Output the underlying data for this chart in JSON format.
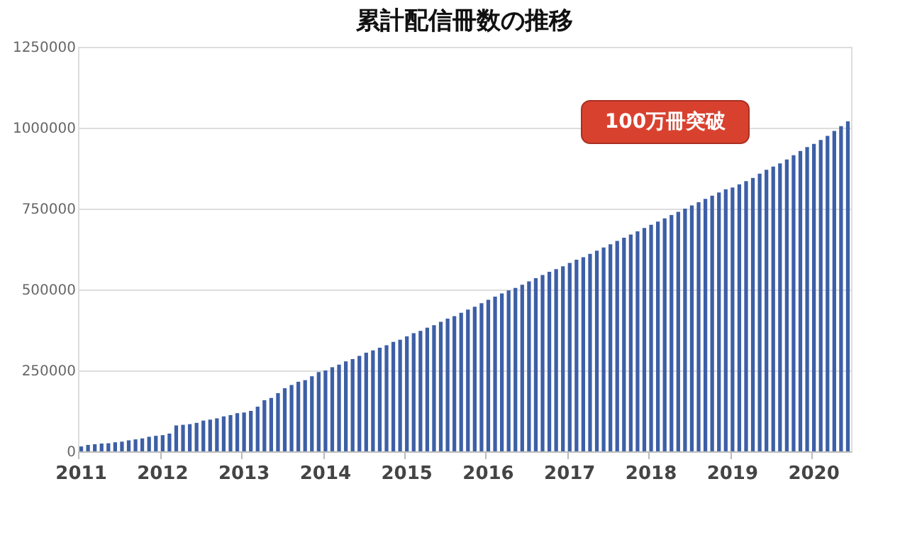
{
  "chart_data": {
    "type": "bar",
    "title": "累計配信冊数の推移",
    "categories": [
      "2011",
      null,
      null,
      null,
      null,
      null,
      null,
      null,
      null,
      null,
      null,
      null,
      "2012",
      null,
      null,
      null,
      null,
      null,
      null,
      null,
      null,
      null,
      null,
      null,
      "2013",
      null,
      null,
      null,
      null,
      null,
      null,
      null,
      null,
      null,
      null,
      null,
      "2014",
      null,
      null,
      null,
      null,
      null,
      null,
      null,
      null,
      null,
      null,
      null,
      "2015",
      null,
      null,
      null,
      null,
      null,
      null,
      null,
      null,
      null,
      null,
      null,
      "2016",
      null,
      null,
      null,
      null,
      null,
      null,
      null,
      null,
      null,
      null,
      null,
      "2017",
      null,
      null,
      null,
      null,
      null,
      null,
      null,
      null,
      null,
      null,
      null,
      "2018",
      null,
      null,
      null,
      null,
      null,
      null,
      null,
      null,
      null,
      null,
      null,
      "2019",
      null,
      null,
      null,
      null,
      null,
      null,
      null,
      null,
      null,
      null,
      null,
      "2020",
      null,
      null,
      null,
      null,
      null
    ],
    "values": [
      15000,
      20000,
      22000,
      24000,
      25000,
      28000,
      30000,
      34000,
      37000,
      40000,
      45000,
      48000,
      50000,
      55000,
      80000,
      82000,
      84000,
      88000,
      95000,
      98000,
      102000,
      108000,
      112000,
      118000,
      120000,
      125000,
      138000,
      158000,
      165000,
      180000,
      195000,
      205000,
      215000,
      220000,
      232000,
      245000,
      250000,
      260000,
      268000,
      278000,
      285000,
      295000,
      305000,
      312000,
      320000,
      328000,
      338000,
      345000,
      355000,
      365000,
      372000,
      382000,
      390000,
      400000,
      410000,
      418000,
      428000,
      438000,
      447000,
      458000,
      468000,
      478000,
      488000,
      497000,
      505000,
      515000,
      525000,
      535000,
      545000,
      555000,
      563000,
      572000,
      582000,
      592000,
      600000,
      610000,
      620000,
      630000,
      640000,
      650000,
      660000,
      670000,
      680000,
      690000,
      700000,
      710000,
      720000,
      730000,
      740000,
      750000,
      760000,
      770000,
      780000,
      790000,
      800000,
      810000,
      815000,
      825000,
      835000,
      845000,
      858000,
      870000,
      880000,
      890000,
      902000,
      915000,
      928000,
      940000,
      950000,
      962000,
      975000,
      990000,
      1005000,
      1020000
    ],
    "color": "#3d5fa6",
    "ylim": [
      0,
      1250000
    ],
    "yticks": [
      0,
      250000,
      500000,
      750000,
      1000000,
      1250000
    ],
    "grid": "y",
    "annotations": [
      "100万冊突破"
    ]
  }
}
